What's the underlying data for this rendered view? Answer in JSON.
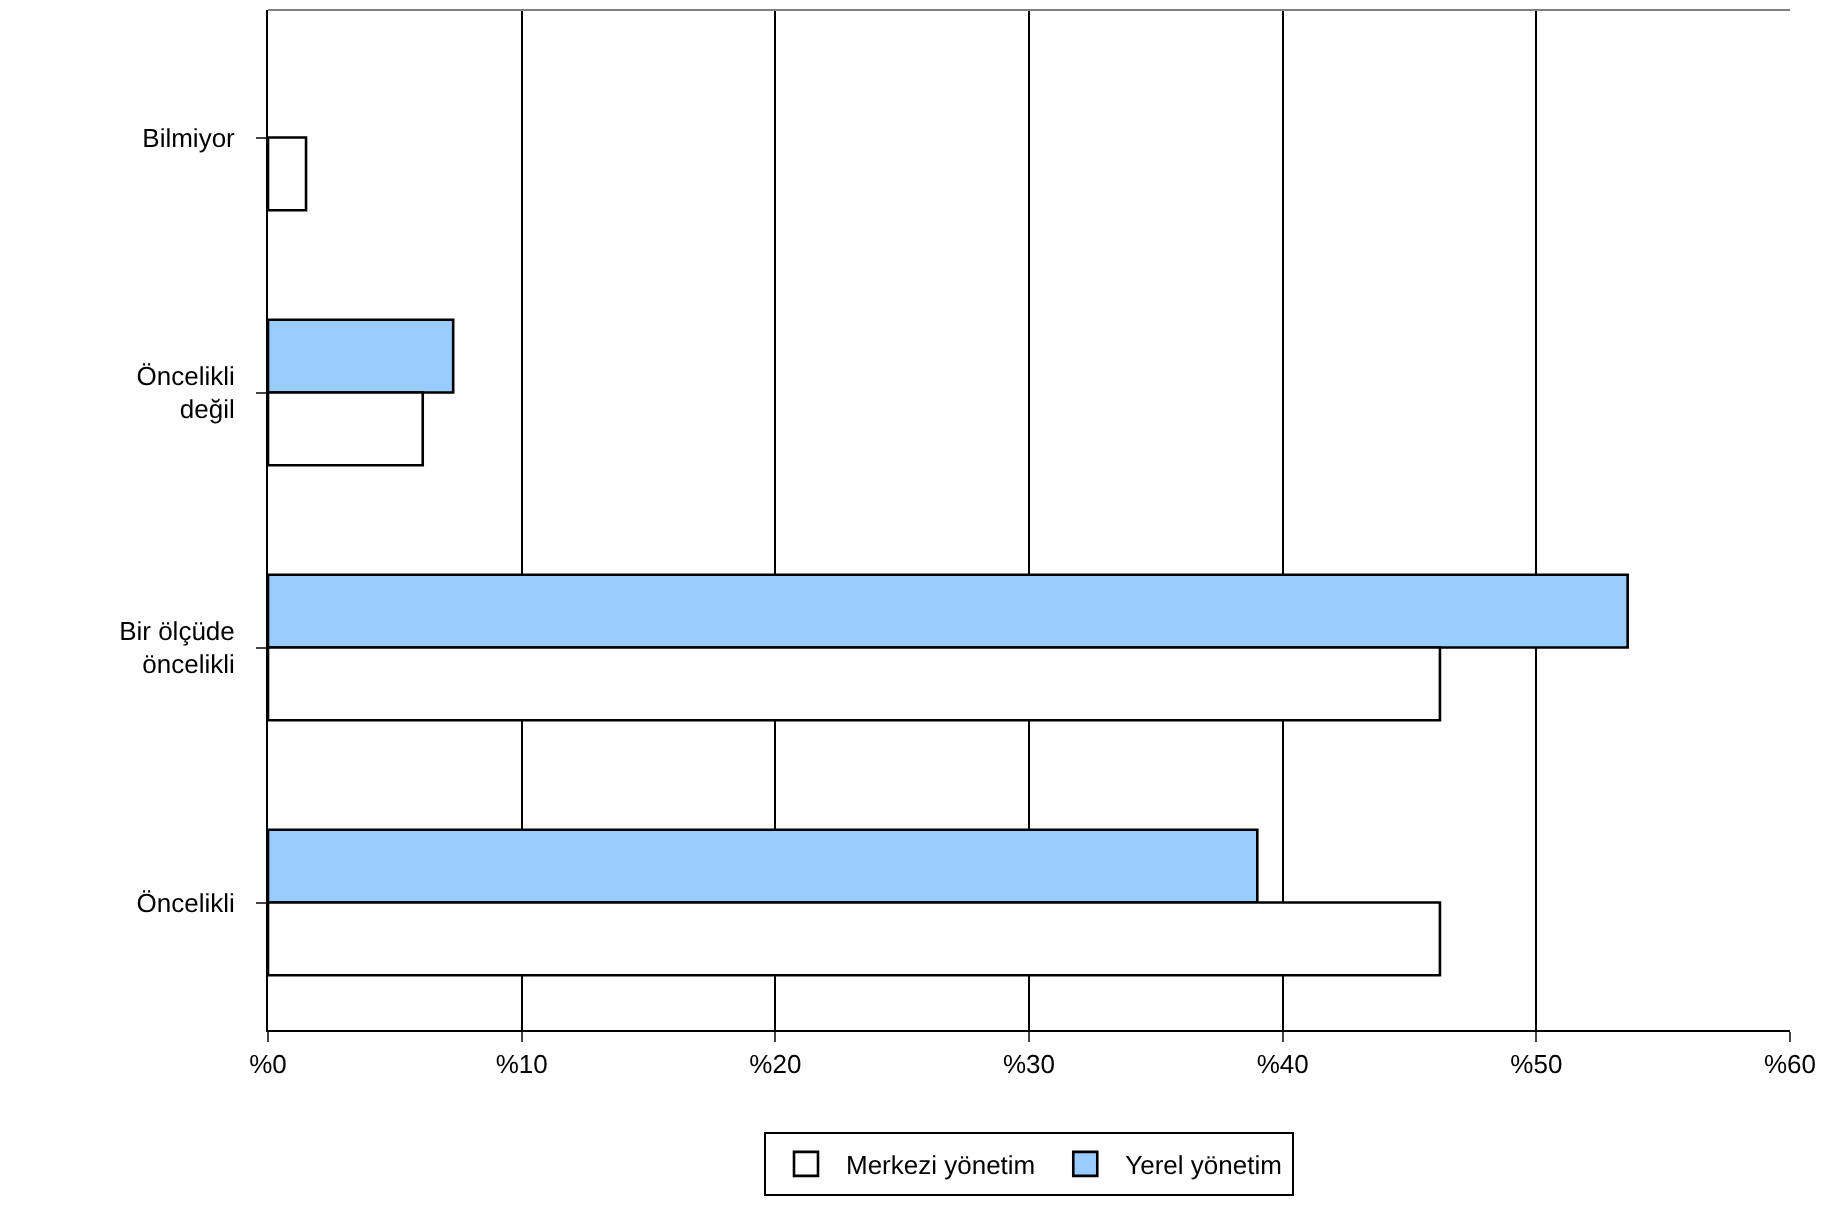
{
  "chart_data": {
    "type": "bar",
    "orientation": "horizontal",
    "categories": [
      "Bilmiyor",
      "Öncelikli değil",
      "Bir ölçüde öncelikli",
      "Öncelikli"
    ],
    "series": [
      {
        "name": "Merkezi yönetim",
        "color": "#ffffff",
        "values": [
          1.5,
          6.1,
          46.2,
          46.2
        ]
      },
      {
        "name": "Yerel yönetim",
        "color": "#99ccff",
        "values": [
          null,
          7.3,
          53.6,
          39.0
        ]
      }
    ],
    "xlim": [
      0,
      60
    ],
    "xticks": [
      {
        "value": 0,
        "label": "%0"
      },
      {
        "value": 10,
        "label": "%10"
      },
      {
        "value": 20,
        "label": "%20"
      },
      {
        "value": 30,
        "label": "%30"
      },
      {
        "value": 40,
        "label": "%40"
      },
      {
        "value": 50,
        "label": "%50"
      },
      {
        "value": 60,
        "label": "%60"
      }
    ],
    "grid": "x",
    "legend": "bottom"
  }
}
